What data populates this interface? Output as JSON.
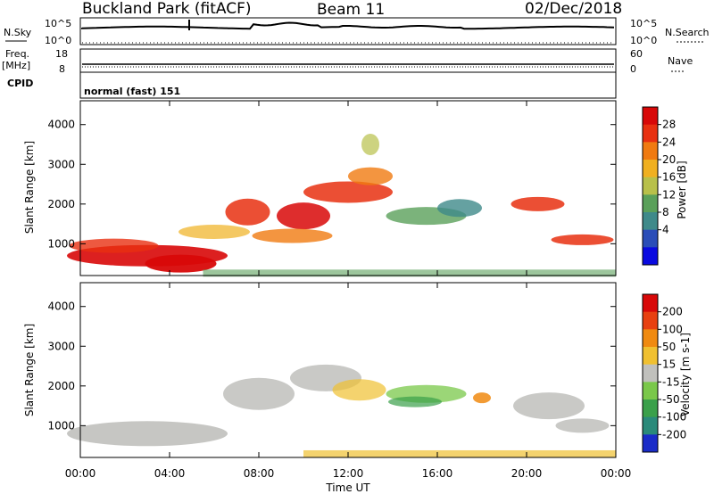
{
  "header": {
    "station": "Buckland Park (fitACF)",
    "beam": "Beam 11",
    "date": "02/Dec/2018"
  },
  "sky_panel": {
    "left_label": "N.Sky",
    "left_ticks": [
      "10^5",
      "10^0"
    ],
    "right_label": "N.Search",
    "right_ticks": [
      "10^5",
      "10^0"
    ]
  },
  "freq_panel": {
    "left_label_line1": "Freq.",
    "left_label_line2": "[MHz]",
    "left_ticks": [
      "18",
      "8"
    ],
    "right_label": "Nave",
    "right_ticks": [
      "60",
      "0"
    ]
  },
  "cpid": {
    "label": "CPID",
    "value": "normal (fast) 151"
  },
  "chart_data": [
    {
      "type": "heatmap",
      "ylabel": "Slant Range [km]",
      "xlabel": "",
      "x_ticks": [
        "00:00",
        "04:00",
        "08:00",
        "12:00",
        "16:00",
        "20:00",
        "00:00"
      ],
      "y_ticks": [
        "1000",
        "2000",
        "3000",
        "4000"
      ],
      "ylim": [
        200,
        4600
      ],
      "colorbar_label": "Power [dB]",
      "colorbar_ticks": [
        "4",
        "8",
        "12",
        "16",
        "20",
        "24",
        "28"
      ],
      "colors": [
        "#0a0ae0",
        "#2a4db8",
        "#3f8a8a",
        "#5aa05a",
        "#b8c04a",
        "#f0b020",
        "#f07a10",
        "#e83010",
        "#d80808"
      ]
    },
    {
      "type": "heatmap",
      "ylabel": "Slant Range [km]",
      "xlabel": "Time UT",
      "x_ticks": [
        "00:00",
        "04:00",
        "08:00",
        "12:00",
        "16:00",
        "20:00",
        "00:00"
      ],
      "y_ticks": [
        "1000",
        "2000",
        "3000",
        "4000"
      ],
      "ylim": [
        200,
        4600
      ],
      "colorbar_label": "Velocity [m s-1]",
      "colorbar_ticks": [
        "200",
        "100",
        "50",
        "15",
        "-15",
        "-50",
        "-100",
        "-200"
      ],
      "colors": [
        "#1a2cc8",
        "#2a8a7a",
        "#3aa04a",
        "#7ac84a",
        "#c0c0bc",
        "#f0c030",
        "#f08a10",
        "#e84010",
        "#d80808"
      ]
    }
  ]
}
